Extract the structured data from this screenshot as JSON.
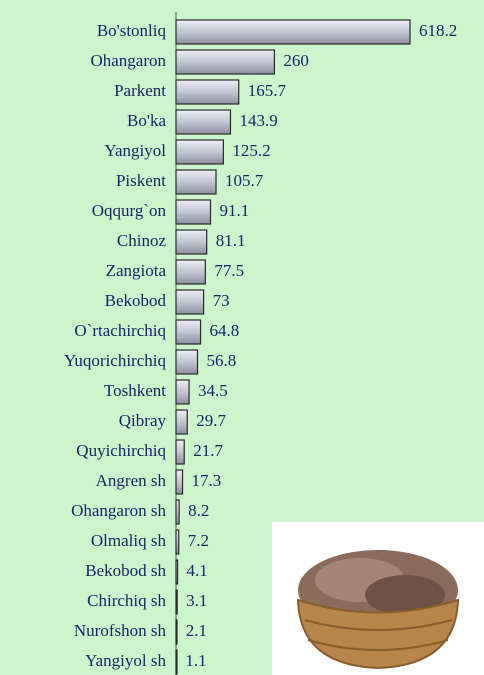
{
  "chart_data": {
    "type": "bar",
    "orientation": "horizontal",
    "categories": [
      "Bo'stonliq",
      "Ohangaron",
      "Parkent",
      "Bo'ka",
      "Yangiyol",
      "Piskent",
      "Oqqurg`on",
      "Chinoz",
      "Zangiota",
      "Bekobod",
      "O`rtachirchiq",
      "Yuqorichirchiq",
      "Toshkent",
      "Qibray",
      "Quyichirchiq",
      "Angren sh",
      "Ohangaron sh",
      "Olmaliq sh",
      "Bekobod sh",
      "Chirchiq sh",
      "Nurofshon sh",
      "Yangiyol sh"
    ],
    "values": [
      618.2,
      260,
      165.7,
      143.9,
      125.2,
      105.7,
      91.1,
      81.1,
      77.5,
      73,
      64.8,
      56.8,
      34.5,
      29.7,
      21.7,
      17.3,
      8.2,
      7.2,
      4.1,
      3.1,
      2.1,
      1.1
    ],
    "color": "#c4c4d2"
  }
}
